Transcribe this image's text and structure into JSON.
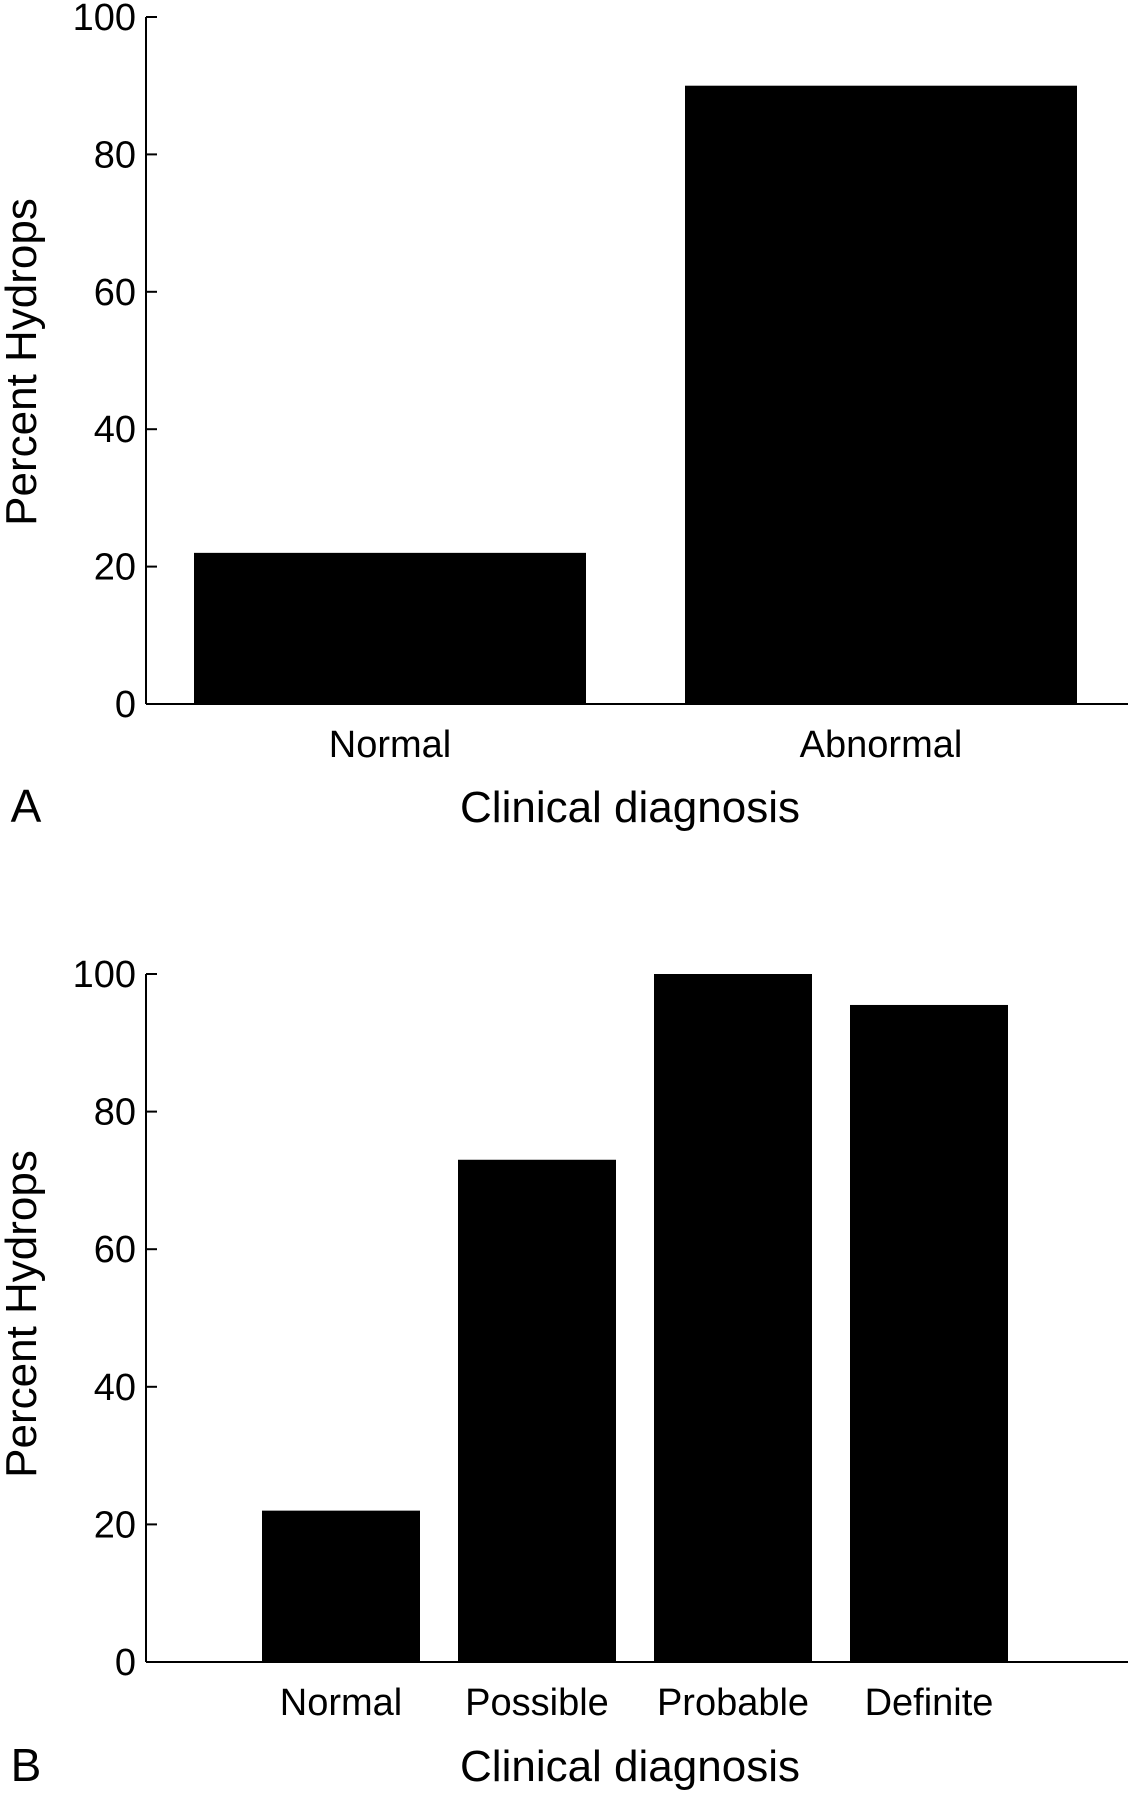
{
  "chart_data": [
    {
      "panel_label": "A",
      "type": "bar",
      "categories": [
        "Normal",
        "Abnormal"
      ],
      "values": [
        22,
        90
      ],
      "xlabel": "Clinical diagnosis",
      "ylabel": "Percent Hydrops",
      "ylim": [
        0,
        100
      ],
      "yticks": [
        "0",
        "20",
        "40",
        "60",
        "80",
        "100"
      ],
      "bar_color": "#000000",
      "grid": false,
      "legend": "none"
    },
    {
      "panel_label": "B",
      "type": "bar",
      "categories": [
        "Normal",
        "Possible",
        "Probable",
        "Definite"
      ],
      "values": [
        22,
        73,
        100,
        95.5
      ],
      "xlabel": "Clinical diagnosis",
      "ylabel": "Percent Hydrops",
      "ylim": [
        0,
        100
      ],
      "yticks": [
        "0",
        "20",
        "40",
        "60",
        "80",
        "100"
      ],
      "bar_color": "#000000",
      "grid": false,
      "legend": "none"
    }
  ]
}
